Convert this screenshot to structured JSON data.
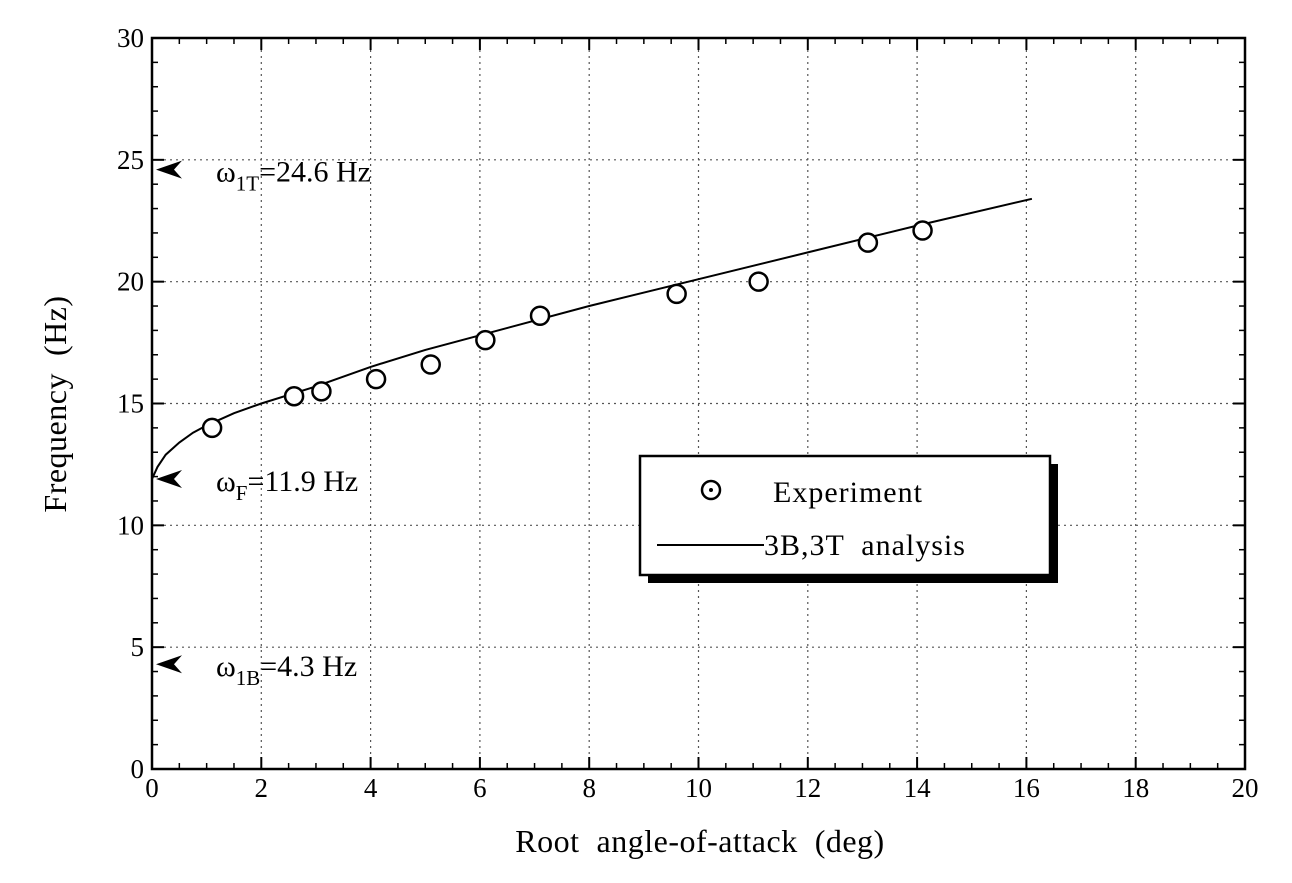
{
  "chart_data": {
    "type": "line",
    "title": "",
    "xlabel": "Root  angle-of-attack  (deg)",
    "ylabel": "Frequency  (Hz)",
    "xlim": [
      0,
      20
    ],
    "ylim": [
      0,
      30
    ],
    "x_ticks": [
      "0",
      "2",
      "4",
      "6",
      "8",
      "10",
      "12",
      "14",
      "16",
      "18",
      "20"
    ],
    "y_ticks": [
      "0",
      "5",
      "10",
      "15",
      "20",
      "25",
      "30"
    ],
    "grid": true,
    "legend_position": "center-right",
    "series": [
      {
        "name": "Experiment",
        "marker": "open-circle",
        "points": [
          {
            "x": 1.1,
            "y": 14.0
          },
          {
            "x": 2.6,
            "y": 15.3
          },
          {
            "x": 3.1,
            "y": 15.5
          },
          {
            "x": 4.1,
            "y": 16.0
          },
          {
            "x": 5.1,
            "y": 16.6
          },
          {
            "x": 6.1,
            "y": 17.6
          },
          {
            "x": 7.1,
            "y": 18.6
          },
          {
            "x": 9.6,
            "y": 19.5
          },
          {
            "x": 11.1,
            "y": 20.0
          },
          {
            "x": 13.1,
            "y": 21.6
          },
          {
            "x": 14.1,
            "y": 22.1
          }
        ]
      },
      {
        "name": "3B,3T  analysis",
        "marker": "line",
        "points": [
          {
            "x": 0.0,
            "y": 11.9
          },
          {
            "x": 0.1,
            "y": 12.4
          },
          {
            "x": 0.25,
            "y": 12.9
          },
          {
            "x": 0.5,
            "y": 13.4
          },
          {
            "x": 0.75,
            "y": 13.8
          },
          {
            "x": 1.0,
            "y": 14.1
          },
          {
            "x": 1.5,
            "y": 14.6
          },
          {
            "x": 2.0,
            "y": 15.0
          },
          {
            "x": 3.0,
            "y": 15.7
          },
          {
            "x": 4.0,
            "y": 16.5
          },
          {
            "x": 5.0,
            "y": 17.2
          },
          {
            "x": 6.0,
            "y": 17.8
          },
          {
            "x": 8.0,
            "y": 19.0
          },
          {
            "x": 10.0,
            "y": 20.1
          },
          {
            "x": 12.0,
            "y": 21.2
          },
          {
            "x": 14.0,
            "y": 22.3
          },
          {
            "x": 16.1,
            "y": 23.4
          }
        ]
      }
    ],
    "annotations": [
      {
        "id": "w1t",
        "symbol": "ω",
        "subscript": "1T",
        "text": "=24.6  Hz",
        "y": 24.6
      },
      {
        "id": "wf",
        "symbol": "ω",
        "subscript": "F",
        "text": "=11.9  Hz",
        "y": 11.9
      },
      {
        "id": "w1b",
        "symbol": "ω",
        "subscript": "1B",
        "text": "=4.3  Hz",
        "y": 4.3
      }
    ]
  },
  "colors": {
    "ink": "#000000",
    "grid": "#555555",
    "background": "#ffffff"
  }
}
